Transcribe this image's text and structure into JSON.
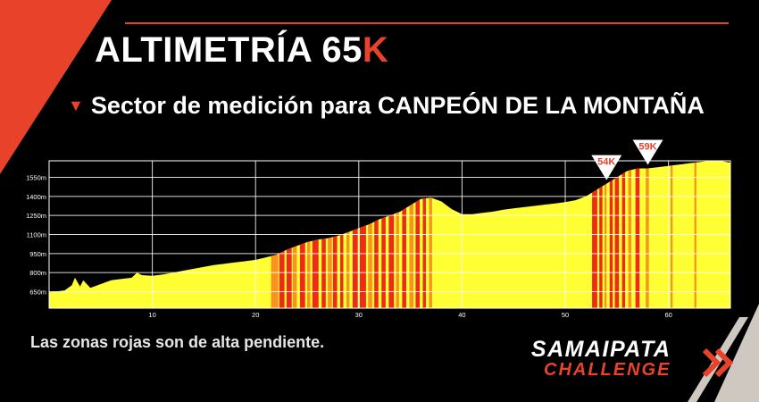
{
  "header": {
    "title": "ALTIMETRÍA 65",
    "title_accent": "K",
    "subtitle": "Sector de medición para CANPEÓN DE LA MONTAÑA"
  },
  "note": "Las zonas rojas son de alta pendiente.",
  "logo": {
    "line1": "SAMAIPATA",
    "line2": "CHALLENGE"
  },
  "colors": {
    "accent": "#e8432a",
    "fill": "#ffff33",
    "steep": "#ee2a1a",
    "moderate": "#f7941d"
  },
  "chart_data": {
    "type": "area",
    "title": "",
    "xlabel": "",
    "ylabel": "",
    "xlim": [
      0,
      66
    ],
    "ylim": [
      520,
      1680
    ],
    "x_ticks": [
      10,
      20,
      30,
      40,
      50,
      60
    ],
    "y_ticks": [
      650,
      800,
      950,
      1100,
      1250,
      1400,
      1550
    ],
    "y_tick_suffix": "m",
    "grid": true,
    "series": [
      {
        "x": [
          0,
          1.5,
          2.2,
          2.5,
          3,
          3.3,
          4,
          5,
          6,
          7,
          8,
          8.5,
          9,
          10,
          11,
          12,
          13,
          14,
          15,
          16,
          17,
          18,
          19,
          20,
          21,
          22,
          23,
          24,
          25,
          26,
          27,
          28,
          29,
          30,
          31,
          32,
          33,
          34,
          35,
          36,
          37,
          38,
          39,
          40,
          41,
          42,
          43,
          44,
          45,
          46,
          47,
          48,
          49,
          50,
          51,
          52,
          53,
          54,
          55,
          56,
          57,
          58,
          59,
          60,
          61,
          62,
          63,
          64,
          65,
          66
        ],
        "values": [
          645,
          660,
          700,
          760,
          690,
          740,
          680,
          710,
          740,
          750,
          760,
          800,
          780,
          775,
          785,
          800,
          815,
          830,
          845,
          860,
          870,
          880,
          890,
          900,
          920,
          940,
          980,
          1010,
          1040,
          1060,
          1070,
          1090,
          1120,
          1150,
          1180,
          1220,
          1250,
          1280,
          1330,
          1380,
          1390,
          1360,
          1300,
          1260,
          1260,
          1270,
          1280,
          1295,
          1305,
          1315,
          1325,
          1335,
          1345,
          1355,
          1370,
          1400,
          1450,
          1500,
          1550,
          1600,
          1620,
          1620,
          1630,
          1640,
          1650,
          1660,
          1670,
          1680,
          1680,
          1665
        ]
      }
    ],
    "steep_zones": [
      [
        21.5,
        22.2,
        "moderate"
      ],
      [
        22.3,
        22.8,
        "steep"
      ],
      [
        23.0,
        23.5,
        "steep"
      ],
      [
        23.6,
        24.0,
        "moderate"
      ],
      [
        24.3,
        24.8,
        "steep"
      ],
      [
        25.0,
        25.3,
        "moderate"
      ],
      [
        25.5,
        26.1,
        "steep"
      ],
      [
        26.4,
        26.8,
        "steep"
      ],
      [
        27.0,
        27.4,
        "moderate"
      ],
      [
        27.5,
        27.9,
        "steep"
      ],
      [
        28.2,
        28.5,
        "steep"
      ],
      [
        28.8,
        29.1,
        "moderate"
      ],
      [
        29.4,
        29.9,
        "steep"
      ],
      [
        30.1,
        30.7,
        "steep"
      ],
      [
        30.9,
        31.3,
        "moderate"
      ],
      [
        31.5,
        31.9,
        "steep"
      ],
      [
        32.2,
        32.6,
        "steep"
      ],
      [
        32.9,
        33.4,
        "steep"
      ],
      [
        33.6,
        33.9,
        "moderate"
      ],
      [
        34.2,
        34.6,
        "steep"
      ],
      [
        34.9,
        35.3,
        "moderate"
      ],
      [
        35.5,
        35.9,
        "steep"
      ],
      [
        36.2,
        36.5,
        "steep"
      ],
      [
        36.8,
        37.1,
        "moderate"
      ],
      [
        52.6,
        53.1,
        "steep"
      ],
      [
        53.3,
        53.6,
        "steep"
      ],
      [
        53.8,
        54.0,
        "moderate"
      ],
      [
        54.3,
        54.6,
        "steep"
      ],
      [
        54.8,
        55.2,
        "steep"
      ],
      [
        55.5,
        55.8,
        "steep"
      ],
      [
        56.1,
        56.4,
        "moderate"
      ],
      [
        56.8,
        57.2,
        "steep"
      ],
      [
        57.8,
        58.1,
        "moderate"
      ],
      [
        60.2,
        60.4,
        "moderate"
      ],
      [
        62.5,
        62.7,
        "moderate"
      ]
    ],
    "annotations": [
      {
        "label": "54K",
        "x": 54
      },
      {
        "label": "59K",
        "x": 58
      }
    ]
  }
}
